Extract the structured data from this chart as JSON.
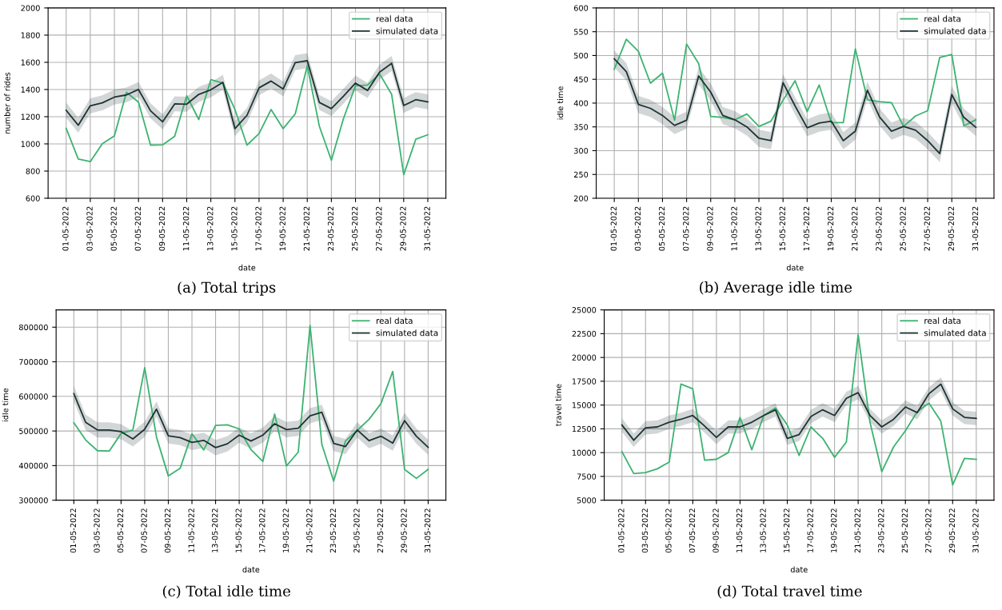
{
  "chart_data": [
    {
      "type": "line",
      "title": "(a) Total trips",
      "xlabel": "date",
      "ylabel": "number of rides",
      "grid": true,
      "legend": "top right",
      "marker": "none",
      "line_style": "solid",
      "x": [
        "2022-05-01",
        "2022-05-02",
        "2022-05-03",
        "2022-05-04",
        "2022-05-05",
        "2022-05-06",
        "2022-05-07",
        "2022-05-08",
        "2022-05-09",
        "2022-05-10",
        "2022-05-11",
        "2022-05-12",
        "2022-05-13",
        "2022-05-14",
        "2022-05-15",
        "2022-05-16",
        "2022-05-17",
        "2022-05-18",
        "2022-05-19",
        "2022-05-20",
        "2022-05-21",
        "2022-05-22",
        "2022-05-23",
        "2022-05-24",
        "2022-05-25",
        "2022-05-26",
        "2022-05-27",
        "2022-05-28",
        "2022-05-29",
        "2022-05-30",
        "2022-05-31"
      ],
      "xlim": [
        "2022-04-29T12:00",
        "2022-06-01T12:00"
      ],
      "xticks": [
        {
          "value": "2022-05-01",
          "label": "01-05-2022"
        },
        {
          "value": "2022-05-03",
          "label": "03-05-2022"
        },
        {
          "value": "2022-05-05",
          "label": "05-05-2022"
        },
        {
          "value": "2022-05-07",
          "label": "07-05-2022"
        },
        {
          "value": "2022-05-09",
          "label": "09-05-2022"
        },
        {
          "value": "2022-05-11",
          "label": "11-05-2022"
        },
        {
          "value": "2022-05-13",
          "label": "13-05-2022"
        },
        {
          "value": "2022-05-15",
          "label": "15-05-2022"
        },
        {
          "value": "2022-05-17",
          "label": "17-05-2022"
        },
        {
          "value": "2022-05-19",
          "label": "19-05-2022"
        },
        {
          "value": "2022-05-21",
          "label": "21-05-2022"
        },
        {
          "value": "2022-05-23",
          "label": "23-05-2022"
        },
        {
          "value": "2022-05-25",
          "label": "25-05-2022"
        },
        {
          "value": "2022-05-27",
          "label": "27-05-2022"
        },
        {
          "value": "2022-05-29",
          "label": "29-05-2022"
        },
        {
          "value": "2022-05-31",
          "label": "31-05-2022"
        }
      ],
      "ylim": [
        600,
        2000
      ],
      "yticks": [
        600,
        800,
        1000,
        1200,
        1400,
        1600,
        1800,
        2000
      ],
      "series": [
        {
          "name": "real data",
          "color": "#3cb371",
          "values": [
            1114,
            889,
            869,
            1001,
            1059,
            1379,
            1307,
            991,
            993,
            1055,
            1354,
            1179,
            1472,
            1447,
            1253,
            991,
            1075,
            1253,
            1112,
            1220,
            1573,
            1131,
            879,
            1185,
            1427,
            1433,
            1515,
            1364,
            774,
            1034,
            1067
          ]
        },
        {
          "name": "simulated data",
          "color": "#1f3333",
          "values": [
            1247,
            1137,
            1280,
            1302,
            1344,
            1360,
            1400,
            1243,
            1162,
            1294,
            1292,
            1364,
            1398,
            1453,
            1112,
            1210,
            1412,
            1462,
            1404,
            1598,
            1612,
            1305,
            1259,
            1350,
            1447,
            1393,
            1528,
            1592,
            1282,
            1325,
            1309
          ],
          "lower": [
            1192,
            1082,
            1225,
            1247,
            1289,
            1305,
            1345,
            1188,
            1107,
            1239,
            1237,
            1309,
            1343,
            1398,
            1057,
            1155,
            1357,
            1407,
            1349,
            1543,
            1557,
            1250,
            1204,
            1295,
            1392,
            1338,
            1473,
            1537,
            1227,
            1270,
            1254
          ],
          "upper": [
            1302,
            1192,
            1335,
            1357,
            1399,
            1415,
            1455,
            1298,
            1217,
            1349,
            1347,
            1419,
            1453,
            1508,
            1167,
            1265,
            1467,
            1517,
            1459,
            1653,
            1667,
            1360,
            1314,
            1405,
            1502,
            1448,
            1583,
            1647,
            1337,
            1380,
            1364
          ]
        }
      ]
    },
    {
      "type": "line",
      "title": "(b) Average idle time",
      "xlabel": "date",
      "ylabel": "idle time",
      "grid": true,
      "legend": "top right",
      "marker": "none",
      "line_style": "solid",
      "x": [
        "2022-05-01",
        "2022-05-02",
        "2022-05-03",
        "2022-05-04",
        "2022-05-05",
        "2022-05-06",
        "2022-05-07",
        "2022-05-08",
        "2022-05-09",
        "2022-05-10",
        "2022-05-11",
        "2022-05-12",
        "2022-05-13",
        "2022-05-14",
        "2022-05-15",
        "2022-05-16",
        "2022-05-17",
        "2022-05-18",
        "2022-05-19",
        "2022-05-20",
        "2022-05-21",
        "2022-05-22",
        "2022-05-23",
        "2022-05-24",
        "2022-05-25",
        "2022-05-26",
        "2022-05-27",
        "2022-05-28",
        "2022-05-29",
        "2022-05-30",
        "2022-05-31"
      ],
      "xlim": [
        "2022-04-29T12:00",
        "2022-06-01T12:00"
      ],
      "xticks": [
        {
          "value": "2022-05-01",
          "label": "01-05-2022"
        },
        {
          "value": "2022-05-03",
          "label": "03-05-2022"
        },
        {
          "value": "2022-05-05",
          "label": "05-05-2022"
        },
        {
          "value": "2022-05-07",
          "label": "07-05-2022"
        },
        {
          "value": "2022-05-09",
          "label": "09-05-2022"
        },
        {
          "value": "2022-05-11",
          "label": "11-05-2022"
        },
        {
          "value": "2022-05-13",
          "label": "13-05-2022"
        },
        {
          "value": "2022-05-15",
          "label": "15-05-2022"
        },
        {
          "value": "2022-05-17",
          "label": "17-05-2022"
        },
        {
          "value": "2022-05-19",
          "label": "19-05-2022"
        },
        {
          "value": "2022-05-21",
          "label": "21-05-2022"
        },
        {
          "value": "2022-05-23",
          "label": "23-05-2022"
        },
        {
          "value": "2022-05-25",
          "label": "25-05-2022"
        },
        {
          "value": "2022-05-27",
          "label": "27-05-2022"
        },
        {
          "value": "2022-05-29",
          "label": "29-05-2022"
        },
        {
          "value": "2022-05-31",
          "label": "31-05-2022"
        }
      ],
      "ylim": [
        200,
        600
      ],
      "yticks": [
        200,
        250,
        300,
        350,
        400,
        450,
        500,
        550,
        600
      ],
      "series": [
        {
          "name": "real data",
          "color": "#3cb371",
          "values": [
            471,
            534,
            509,
            442,
            463,
            364,
            524,
            483,
            372,
            370,
            365,
            377,
            351,
            362,
            406,
            447,
            382,
            438,
            359,
            359,
            514,
            407,
            403,
            401,
            351,
            373,
            384,
            496,
            502,
            352,
            365
          ]
        },
        {
          "name": "simulated data",
          "color": "#1f3333",
          "values": [
            493,
            466,
            397,
            389,
            374,
            353,
            364,
            457,
            423,
            374,
            365,
            350,
            326,
            321,
            443,
            394,
            348,
            358,
            362,
            321,
            341,
            427,
            371,
            341,
            351,
            343,
            321,
            294,
            418,
            370,
            349
          ],
          "lower": [
            475,
            448,
            379,
            371,
            356,
            335,
            346,
            439,
            405,
            356,
            347,
            332,
            308,
            303,
            425,
            376,
            330,
            340,
            344,
            303,
            323,
            409,
            353,
            323,
            333,
            325,
            303,
            276,
            400,
            352,
            331
          ],
          "upper": [
            511,
            484,
            415,
            407,
            392,
            371,
            382,
            475,
            441,
            392,
            383,
            368,
            344,
            339,
            461,
            412,
            366,
            376,
            380,
            339,
            359,
            445,
            389,
            359,
            369,
            361,
            339,
            312,
            436,
            388,
            367
          ]
        }
      ]
    },
    {
      "type": "line",
      "title": "(c) Total idle time",
      "xlabel": "date",
      "ylabel": "idle time",
      "grid": true,
      "legend": "top right",
      "marker": "none",
      "line_style": "solid",
      "x": [
        "2022-05-01",
        "2022-05-02",
        "2022-05-03",
        "2022-05-04",
        "2022-05-05",
        "2022-05-06",
        "2022-05-07",
        "2022-05-08",
        "2022-05-09",
        "2022-05-10",
        "2022-05-11",
        "2022-05-12",
        "2022-05-13",
        "2022-05-14",
        "2022-05-15",
        "2022-05-16",
        "2022-05-17",
        "2022-05-18",
        "2022-05-19",
        "2022-05-20",
        "2022-05-21",
        "2022-05-22",
        "2022-05-23",
        "2022-05-24",
        "2022-05-25",
        "2022-05-26",
        "2022-05-27",
        "2022-05-28",
        "2022-05-29",
        "2022-05-30",
        "2022-05-31"
      ],
      "xlim": [
        "2022-04-29T12:00",
        "2022-06-01T12:00"
      ],
      "xticks": [
        {
          "value": "2022-05-01",
          "label": "01-05-2022"
        },
        {
          "value": "2022-05-03",
          "label": "03-05-2022"
        },
        {
          "value": "2022-05-05",
          "label": "05-05-2022"
        },
        {
          "value": "2022-05-07",
          "label": "07-05-2022"
        },
        {
          "value": "2022-05-09",
          "label": "09-05-2022"
        },
        {
          "value": "2022-05-11",
          "label": "11-05-2022"
        },
        {
          "value": "2022-05-13",
          "label": "13-05-2022"
        },
        {
          "value": "2022-05-15",
          "label": "15-05-2022"
        },
        {
          "value": "2022-05-17",
          "label": "17-05-2022"
        },
        {
          "value": "2022-05-19",
          "label": "19-05-2022"
        },
        {
          "value": "2022-05-21",
          "label": "21-05-2022"
        },
        {
          "value": "2022-05-23",
          "label": "23-05-2022"
        },
        {
          "value": "2022-05-25",
          "label": "25-05-2022"
        },
        {
          "value": "2022-05-27",
          "label": "27-05-2022"
        },
        {
          "value": "2022-05-29",
          "label": "29-05-2022"
        },
        {
          "value": "2022-05-31",
          "label": "31-05-2022"
        }
      ],
      "ylim": [
        300000,
        850000
      ],
      "yticks": [
        300000,
        400000,
        500000,
        600000,
        700000,
        800000
      ],
      "series": [
        {
          "name": "real data",
          "color": "#3cb371",
          "values": [
            524000,
            474000,
            443000,
            442000,
            493000,
            503000,
            683000,
            482000,
            370000,
            392000,
            492000,
            445000,
            516000,
            518000,
            506000,
            446000,
            412000,
            549000,
            399000,
            439000,
            805000,
            461000,
            355000,
            471000,
            502000,
            534000,
            579000,
            672000,
            389000,
            363000,
            389000
          ]
        },
        {
          "name": "simulated data",
          "color": "#1f3333",
          "values": [
            608000,
            525000,
            503000,
            503000,
            498000,
            477000,
            505000,
            563000,
            486000,
            481000,
            467000,
            473000,
            452000,
            463000,
            488000,
            471000,
            488000,
            521000,
            504000,
            508000,
            544000,
            554000,
            464000,
            455000,
            503000,
            472000,
            485000,
            465000,
            530000,
            485000,
            453000
          ],
          "lower": [
            586000,
            503000,
            481000,
            481000,
            476000,
            455000,
            483000,
            541000,
            464000,
            459000,
            445000,
            451000,
            430000,
            441000,
            466000,
            449000,
            466000,
            499000,
            482000,
            486000,
            522000,
            532000,
            442000,
            433000,
            481000,
            450000,
            463000,
            443000,
            508000,
            463000,
            431000
          ],
          "upper": [
            630000,
            547000,
            525000,
            525000,
            520000,
            499000,
            527000,
            585000,
            508000,
            503000,
            489000,
            495000,
            474000,
            485000,
            510000,
            493000,
            510000,
            543000,
            526000,
            530000,
            566000,
            576000,
            486000,
            477000,
            525000,
            494000,
            507000,
            487000,
            552000,
            507000,
            475000
          ]
        }
      ]
    },
    {
      "type": "line",
      "title": "(d) Total travel time",
      "xlabel": "date",
      "ylabel": "travel time",
      "grid": true,
      "legend": "top right",
      "marker": "none",
      "line_style": "solid",
      "x": [
        "2022-05-01",
        "2022-05-02",
        "2022-05-03",
        "2022-05-04",
        "2022-05-05",
        "2022-05-06",
        "2022-05-07",
        "2022-05-08",
        "2022-05-09",
        "2022-05-10",
        "2022-05-11",
        "2022-05-12",
        "2022-05-13",
        "2022-05-14",
        "2022-05-15",
        "2022-05-16",
        "2022-05-17",
        "2022-05-18",
        "2022-05-19",
        "2022-05-20",
        "2022-05-21",
        "2022-05-22",
        "2022-05-23",
        "2022-05-24",
        "2022-05-25",
        "2022-05-26",
        "2022-05-27",
        "2022-05-28",
        "2022-05-29",
        "2022-05-30",
        "2022-05-31"
      ],
      "xlim": [
        "2022-04-29T12:00",
        "2022-06-01T12:00"
      ],
      "xticks": [
        {
          "value": "2022-05-01",
          "label": "01-05-2022"
        },
        {
          "value": "2022-05-03",
          "label": "03-05-2022"
        },
        {
          "value": "2022-05-05",
          "label": "05-05-2022"
        },
        {
          "value": "2022-05-07",
          "label": "07-05-2022"
        },
        {
          "value": "2022-05-09",
          "label": "09-05-2022"
        },
        {
          "value": "2022-05-11",
          "label": "11-05-2022"
        },
        {
          "value": "2022-05-13",
          "label": "13-05-2022"
        },
        {
          "value": "2022-05-15",
          "label": "15-05-2022"
        },
        {
          "value": "2022-05-17",
          "label": "17-05-2022"
        },
        {
          "value": "2022-05-19",
          "label": "19-05-2022"
        },
        {
          "value": "2022-05-21",
          "label": "21-05-2022"
        },
        {
          "value": "2022-05-23",
          "label": "23-05-2022"
        },
        {
          "value": "2022-05-25",
          "label": "25-05-2022"
        },
        {
          "value": "2022-05-27",
          "label": "27-05-2022"
        },
        {
          "value": "2022-05-29",
          "label": "29-05-2022"
        },
        {
          "value": "2022-05-31",
          "label": "31-05-2022"
        }
      ],
      "ylim": [
        5000,
        25000
      ],
      "yticks": [
        5000,
        7500,
        10000,
        12500,
        15000,
        17500,
        20000,
        22500,
        25000
      ],
      "series": [
        {
          "name": "real data",
          "color": "#3cb371",
          "values": [
            10100,
            7800,
            7900,
            8300,
            9000,
            17200,
            16700,
            9200,
            9300,
            10000,
            13700,
            10300,
            13900,
            14700,
            12900,
            9700,
            12700,
            11500,
            9500,
            11100,
            22400,
            13200,
            8000,
            10600,
            12300,
            14300,
            15200,
            13300,
            6600,
            9400,
            9300
          ]
        },
        {
          "name": "simulated data",
          "color": "#1f3333",
          "values": [
            12900,
            11300,
            12600,
            12700,
            13200,
            13500,
            13900,
            12800,
            11600,
            12700,
            12700,
            13200,
            13900,
            14500,
            11500,
            11900,
            13800,
            14500,
            13900,
            15700,
            16300,
            13900,
            12700,
            13500,
            14800,
            14200,
            16200,
            17200,
            14600,
            13700,
            13600
          ],
          "lower": [
            12200,
            10600,
            11900,
            12000,
            12500,
            12800,
            13200,
            12100,
            10900,
            12000,
            12000,
            12500,
            13200,
            13800,
            10800,
            11200,
            13100,
            13800,
            13200,
            15000,
            15600,
            13200,
            12000,
            12800,
            14100,
            13500,
            15500,
            16500,
            13900,
            13000,
            12900
          ],
          "upper": [
            13600,
            12000,
            13300,
            13400,
            13900,
            14200,
            14600,
            13500,
            12300,
            13400,
            13400,
            13900,
            14600,
            15200,
            12200,
            12600,
            14500,
            15200,
            14600,
            16400,
            17000,
            14600,
            13400,
            14200,
            15500,
            14900,
            16900,
            17900,
            15300,
            14400,
            14300
          ]
        }
      ]
    }
  ]
}
